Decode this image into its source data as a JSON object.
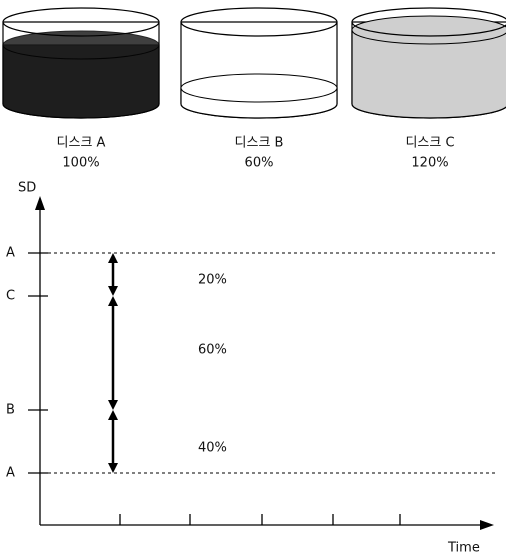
{
  "disks": [
    {
      "label": "디스크 A",
      "percent": "100%"
    },
    {
      "label": "디스크 B",
      "percent": "60%"
    },
    {
      "label": "디스크 C",
      "percent": "120%"
    }
  ],
  "axis": {
    "y_label": "SD",
    "x_label": "Time"
  },
  "y_levels": [
    "A",
    "C",
    "B",
    "A"
  ],
  "segments": [
    "20%",
    "60%",
    "40%"
  ]
}
